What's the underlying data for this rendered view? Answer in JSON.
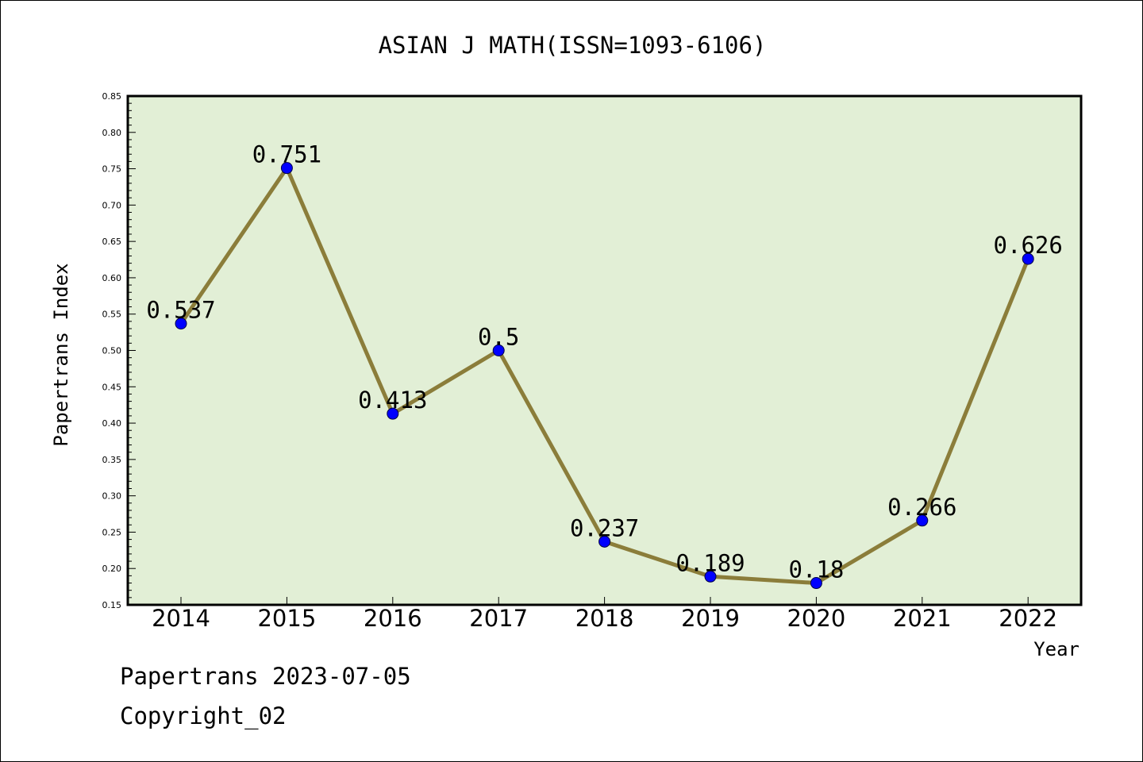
{
  "chart_data": {
    "type": "line",
    "title": "ASIAN J MATH(ISSN=1093-6106)",
    "xlabel": "Year",
    "ylabel": "Papertrans Index",
    "categories": [
      "2014",
      "2015",
      "2016",
      "2017",
      "2018",
      "2019",
      "2020",
      "2021",
      "2022"
    ],
    "series": [
      {
        "values": [
          0.537,
          0.751,
          0.413,
          0.5,
          0.237,
          0.189,
          0.18,
          0.266,
          0.626
        ],
        "data_labels": [
          "0.537",
          "0.751",
          "0.413",
          "0.5",
          "0.237",
          "0.189",
          "0.18",
          "0.266",
          "0.626"
        ]
      }
    ],
    "ylim": [
      0.15,
      0.85
    ],
    "yticks": [
      "0.15",
      "0.20",
      "0.25",
      "0.30",
      "0.35",
      "0.40",
      "0.45",
      "0.50",
      "0.55",
      "0.60",
      "0.65",
      "0.70",
      "0.75",
      "0.80",
      "0.85"
    ],
    "grid": false,
    "legend": "none",
    "colors": {
      "plot_background": "#e2efd6",
      "line": "#8b7d3a",
      "marker": "#0000ff"
    }
  },
  "footer": {
    "generated": "Papertrans 2023-07-05",
    "copyright": "Copyright_02"
  }
}
